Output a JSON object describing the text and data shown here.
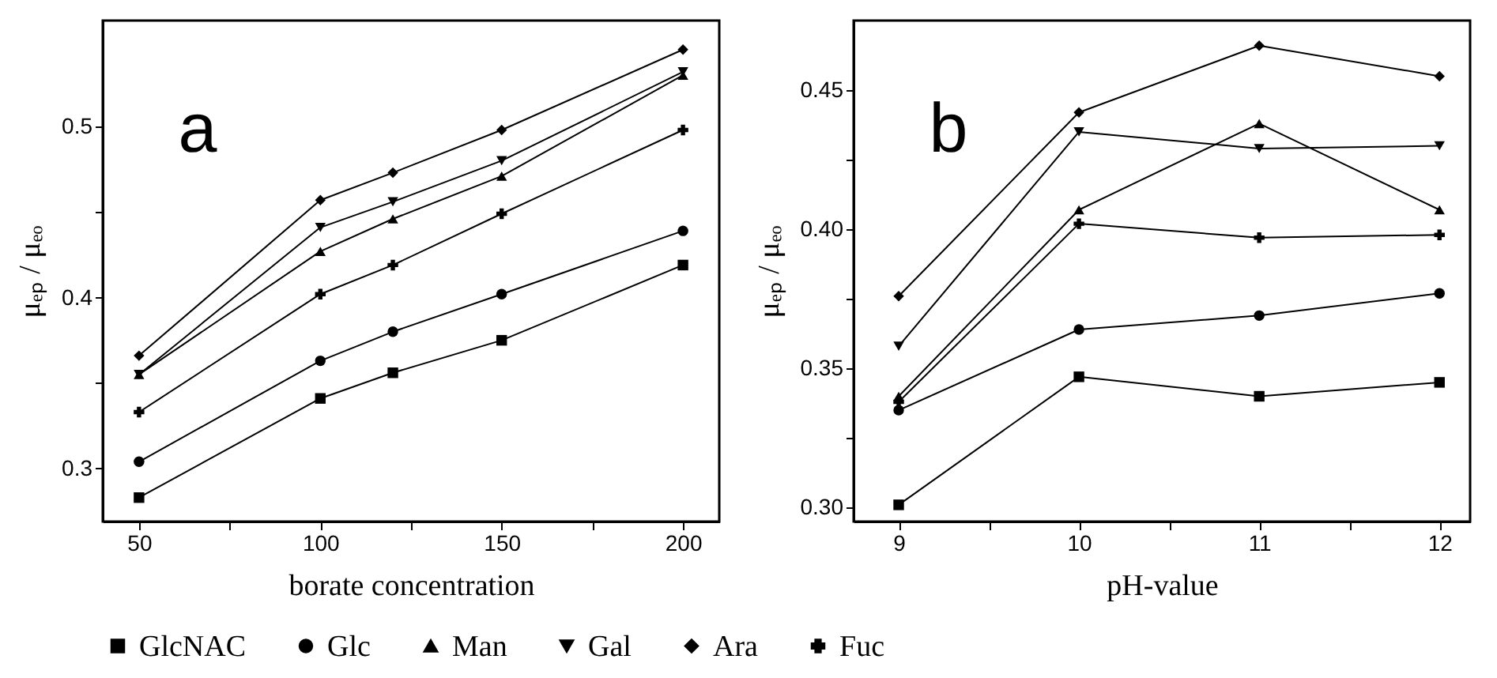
{
  "chart_data": [
    {
      "type": "line",
      "xlabel": "borate concentration",
      "ylabel": "μₑₚ / μₑₒ",
      "annotations": [
        "a"
      ],
      "x": [
        50,
        100,
        120,
        150,
        200
      ],
      "xlim": [
        40,
        210
      ],
      "ylim": [
        0.269,
        0.562
      ],
      "xticks": [
        50,
        {
          "value": 75,
          "label": null
        },
        100,
        {
          "value": 125,
          "label": null
        },
        150,
        {
          "value": 175,
          "label": null
        },
        200
      ],
      "yticks": [
        0.3,
        {
          "value": 0.35,
          "label": null
        },
        0.4,
        {
          "value": 0.45,
          "label": null
        },
        0.5
      ],
      "legend": "bottom",
      "grid": false,
      "series": [
        {
          "name": "GlcNAC",
          "color": "#000000",
          "marker": "square",
          "values": [
            0.283,
            0.341,
            0.356,
            0.375,
            0.419
          ]
        },
        {
          "name": "Glc",
          "color": "#000000",
          "marker": "circle",
          "values": [
            0.304,
            0.363,
            0.38,
            0.402,
            0.439
          ]
        },
        {
          "name": "Man",
          "color": "#000000",
          "marker": "triangle",
          "values": [
            0.355,
            0.427,
            0.446,
            0.471,
            0.53
          ]
        },
        {
          "name": "Gal",
          "color": "#000000",
          "marker": "triangle-down",
          "values": [
            0.355,
            0.441,
            0.456,
            0.48,
            0.532
          ]
        },
        {
          "name": "Ara",
          "color": "#000000",
          "marker": "diamond",
          "values": [
            0.366,
            0.457,
            0.473,
            0.498,
            0.545
          ]
        },
        {
          "name": "Fuc",
          "color": "#000000",
          "marker": "cross",
          "values": [
            0.333,
            0.402,
            0.419,
            0.449,
            0.498
          ]
        }
      ]
    },
    {
      "type": "line",
      "xlabel": "pH-value",
      "ylabel": "μₑₚ / μₑₒ",
      "annotations": [
        "b"
      ],
      "x": [
        9,
        10,
        11,
        12
      ],
      "xlim": [
        8.75,
        12.17
      ],
      "ylim": [
        0.295,
        0.475
      ],
      "xticks": [
        9,
        {
          "value": 9.5,
          "label": null
        },
        10,
        {
          "value": 10.5,
          "label": null
        },
        11,
        {
          "value": 11.5,
          "label": null
        },
        12
      ],
      "yticks": [
        {
          "value": 0.3,
          "label": "0.30"
        },
        {
          "value": 0.325,
          "label": null
        },
        {
          "value": 0.35,
          "label": "0.35"
        },
        {
          "value": 0.375,
          "label": null
        },
        {
          "value": 0.4,
          "label": "0.40"
        },
        {
          "value": 0.425,
          "label": null
        },
        {
          "value": 0.45,
          "label": "0.45"
        }
      ],
      "legend": "bottom",
      "grid": false,
      "series": [
        {
          "name": "GlcNAC",
          "color": "#000000",
          "marker": "square",
          "values": [
            0.301,
            0.347,
            0.34,
            0.345
          ]
        },
        {
          "name": "Glc",
          "color": "#000000",
          "marker": "circle",
          "values": [
            0.335,
            0.364,
            0.369,
            0.377
          ]
        },
        {
          "name": "Man",
          "color": "#000000",
          "marker": "triangle",
          "values": [
            0.34,
            0.407,
            0.438,
            0.407
          ]
        },
        {
          "name": "Gal",
          "color": "#000000",
          "marker": "triangle-down",
          "values": [
            0.358,
            0.435,
            0.429,
            0.43
          ]
        },
        {
          "name": "Ara",
          "color": "#000000",
          "marker": "diamond",
          "values": [
            0.376,
            0.442,
            0.466,
            0.455
          ]
        },
        {
          "name": "Fuc",
          "color": "#000000",
          "marker": "cross",
          "values": [
            0.338,
            0.402,
            0.397,
            0.398
          ]
        }
      ]
    }
  ]
}
